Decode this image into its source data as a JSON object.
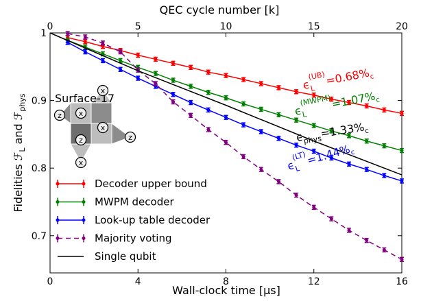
{
  "chart_data": {
    "type": "line",
    "xlabel": "Wall-clock time [μs]",
    "x2label": "QEC cycle number [k]",
    "ylabel": [
      "Fidelities ",
      "ℱ",
      "L",
      " and ",
      "ℱ",
      "phys"
    ],
    "xlim": [
      0,
      16
    ],
    "xticks": [
      0,
      4,
      8,
      12,
      16
    ],
    "x2lim": [
      0,
      20
    ],
    "x2ticks": [
      0,
      5,
      10,
      15,
      20
    ],
    "ylim": [
      0.645,
      1
    ],
    "yticks": [
      0.7,
      0.8,
      0.9,
      1
    ],
    "legend": "lower left",
    "x": [
      0.8,
      1.6,
      2.4,
      3.2,
      4,
      4.8,
      5.6,
      6.4,
      7.2,
      8,
      8.8,
      9.6,
      10.4,
      11.2,
      12,
      12.8,
      13.6,
      14.4,
      15.2,
      16
    ],
    "series": [
      {
        "name": "Decoder upper bound",
        "color": "#ff0000",
        "dashed": false,
        "error": 0.003,
        "values": [
          0.993,
          0.987,
          0.98,
          0.974,
          0.967,
          0.961,
          0.955,
          0.949,
          0.942,
          0.937,
          0.931,
          0.925,
          0.919,
          0.913,
          0.908,
          0.902,
          0.897,
          0.892,
          0.886,
          0.881
        ]
      },
      {
        "name": "MWPM decoder",
        "color": "#008000",
        "dashed": false,
        "error": 0.003,
        "values": [
          0.989,
          0.979,
          0.969,
          0.959,
          0.949,
          0.94,
          0.93,
          0.921,
          0.912,
          0.904,
          0.895,
          0.887,
          0.879,
          0.871,
          0.863,
          0.855,
          0.848,
          0.84,
          0.833,
          0.826
        ]
      },
      {
        "name": "Look-up table decoder",
        "color": "#0000ff",
        "dashed": false,
        "error": 0.003,
        "values": [
          0.986,
          0.972,
          0.959,
          0.946,
          0.933,
          0.921,
          0.909,
          0.897,
          0.886,
          0.875,
          0.864,
          0.854,
          0.844,
          0.834,
          0.825,
          0.815,
          0.806,
          0.798,
          0.789,
          0.781
        ]
      },
      {
        "name": "Majority voting",
        "color": "#800080",
        "dashed": true,
        "error": 0.003,
        "values": [
          0.999,
          0.994,
          0.985,
          0.972,
          0.945,
          0.925,
          0.898,
          0.878,
          0.857,
          0.838,
          0.817,
          0.798,
          0.78,
          0.76,
          0.742,
          0.725,
          0.708,
          0.693,
          0.679,
          0.665
        ]
      },
      {
        "name": "Single qubit",
        "color": "#000000",
        "dashed": false,
        "markers": false,
        "x": [
          0,
          4,
          8,
          12,
          16
        ],
        "values": [
          1,
          0.944,
          0.893,
          0.84,
          0.79
        ]
      }
    ],
    "annotations": [
      {
        "symbol": "ϵ",
        "sub": "L",
        "sup": "(UB)",
        "value": "=0.68%",
        "unit_sub": "c",
        "color": "#ff0000"
      },
      {
        "symbol": "ϵ",
        "sub": "L",
        "sup": "(MWPM)",
        "value": "=1.07%",
        "unit_sub": "c",
        "color": "#008000"
      },
      {
        "symbol": "ϵ",
        "sub": "phys",
        "value": "=1.33%",
        "unit_sub": "c",
        "color": "#000000"
      },
      {
        "symbol": "ϵ",
        "sub": "L",
        "sup": "(LT)",
        "value": "=1.44%",
        "unit_sub": "c",
        "color": "#0000ff"
      }
    ],
    "inset": {
      "title": "Surface-17",
      "labels": [
        "z",
        "x",
        "x",
        "z",
        "x",
        "z",
        "x"
      ]
    }
  }
}
